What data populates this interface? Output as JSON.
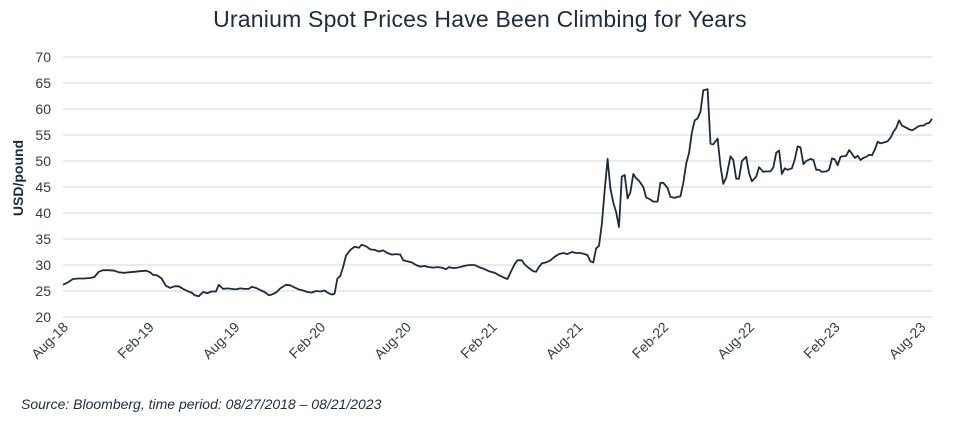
{
  "chart_data": {
    "type": "line",
    "title": "Uranium Spot Prices Have Been Climbing for Years",
    "ylabel": "USD/pound",
    "xlabel": "",
    "source": "Source: Bloomberg, time period: 08/27/2018 – 08/21/2023",
    "ylim": [
      20,
      70
    ],
    "yticks": [
      20,
      25,
      30,
      35,
      40,
      45,
      50,
      55,
      60,
      65,
      70
    ],
    "grid": "horizontal",
    "legend": "none",
    "line_color": "#1c2b3d",
    "x_ticks": [
      {
        "label": "Aug-18",
        "x": 0
      },
      {
        "label": "Feb-19",
        "x": 6
      },
      {
        "label": "Aug-19",
        "x": 12
      },
      {
        "label": "Feb-20",
        "x": 18
      },
      {
        "label": "Aug-20",
        "x": 24
      },
      {
        "label": "Feb-21",
        "x": 30
      },
      {
        "label": "Aug-21",
        "x": 36
      },
      {
        "label": "Feb-22",
        "x": 42
      },
      {
        "label": "Aug-22",
        "x": 48
      },
      {
        "label": "Feb-23",
        "x": 54
      },
      {
        "label": "Aug-23",
        "x": 60
      }
    ],
    "x_unit": "months since Aug-18",
    "series": [
      {
        "name": "",
        "points": [
          [
            0,
            26.2
          ],
          [
            0.3,
            26.6
          ],
          [
            0.7,
            27.3
          ],
          [
            1.1,
            27.4
          ],
          [
            1.5,
            27.4
          ],
          [
            1.9,
            27.5
          ],
          [
            2.2,
            27.7
          ],
          [
            2.5,
            28.7
          ],
          [
            2.8,
            29.0
          ],
          [
            3.2,
            29.0
          ],
          [
            3.6,
            28.9
          ],
          [
            3.9,
            28.6
          ],
          [
            4.3,
            28.5
          ],
          [
            4.6,
            28.6
          ],
          [
            5.0,
            28.7
          ],
          [
            5.4,
            28.8
          ],
          [
            5.8,
            28.9
          ],
          [
            6.1,
            28.6
          ],
          [
            6.3,
            28.1
          ],
          [
            6.6,
            28.0
          ],
          [
            6.9,
            27.4
          ],
          [
            7.2,
            26.0
          ],
          [
            7.5,
            25.6
          ],
          [
            7.8,
            25.9
          ],
          [
            8.1,
            25.9
          ],
          [
            8.4,
            25.4
          ],
          [
            8.7,
            25.0
          ],
          [
            9.0,
            24.7
          ],
          [
            9.2,
            24.2
          ],
          [
            9.5,
            24.0
          ],
          [
            9.8,
            24.8
          ],
          [
            10.1,
            24.6
          ],
          [
            10.4,
            24.9
          ],
          [
            10.7,
            24.9
          ],
          [
            10.9,
            26.2
          ],
          [
            11.2,
            25.4
          ],
          [
            11.5,
            25.5
          ],
          [
            11.8,
            25.4
          ],
          [
            12.1,
            25.3
          ],
          [
            12.4,
            25.5
          ],
          [
            12.7,
            25.4
          ],
          [
            13.0,
            25.4
          ],
          [
            13.2,
            25.8
          ],
          [
            13.5,
            25.6
          ],
          [
            13.8,
            25.2
          ],
          [
            14.1,
            24.8
          ],
          [
            14.4,
            24.2
          ],
          [
            14.6,
            24.3
          ],
          [
            14.9,
            24.7
          ],
          [
            15.2,
            25.5
          ],
          [
            15.6,
            26.2
          ],
          [
            15.9,
            26.1
          ],
          [
            16.2,
            25.7
          ],
          [
            16.5,
            25.3
          ],
          [
            16.8,
            25.1
          ],
          [
            17.1,
            24.8
          ],
          [
            17.4,
            24.7
          ],
          [
            17.7,
            25.0
          ],
          [
            18.0,
            24.9
          ],
          [
            18.3,
            25.1
          ],
          [
            18.5,
            24.7
          ],
          [
            18.8,
            24.3
          ],
          [
            19.0,
            24.5
          ],
          [
            19.2,
            27.4
          ],
          [
            19.4,
            27.9
          ],
          [
            19.6,
            29.6
          ],
          [
            19.8,
            31.8
          ],
          [
            20.1,
            32.9
          ],
          [
            20.4,
            33.5
          ],
          [
            20.7,
            33.3
          ],
          [
            20.9,
            33.9
          ],
          [
            21.2,
            33.6
          ],
          [
            21.5,
            33.0
          ],
          [
            21.8,
            32.9
          ],
          [
            22.1,
            32.6
          ],
          [
            22.4,
            32.8
          ],
          [
            22.7,
            32.3
          ],
          [
            23.0,
            32.0
          ],
          [
            23.3,
            32.1
          ],
          [
            23.6,
            32.0
          ],
          [
            23.8,
            30.9
          ],
          [
            24.1,
            30.7
          ],
          [
            24.4,
            30.5
          ],
          [
            24.7,
            30.0
          ],
          [
            25.0,
            29.7
          ],
          [
            25.3,
            29.8
          ],
          [
            25.6,
            29.6
          ],
          [
            25.9,
            29.5
          ],
          [
            26.2,
            29.6
          ],
          [
            26.5,
            29.5
          ],
          [
            26.8,
            29.2
          ],
          [
            27.0,
            29.6
          ],
          [
            27.3,
            29.4
          ],
          [
            27.6,
            29.5
          ],
          [
            27.9,
            29.7
          ],
          [
            28.2,
            29.9
          ],
          [
            28.5,
            30.0
          ],
          [
            28.8,
            30.0
          ],
          [
            29.1,
            29.6
          ],
          [
            29.4,
            29.3
          ],
          [
            29.8,
            28.8
          ],
          [
            30.2,
            28.5
          ],
          [
            30.6,
            27.9
          ],
          [
            30.9,
            27.5
          ],
          [
            31.1,
            27.3
          ],
          [
            31.3,
            28.5
          ],
          [
            31.6,
            30.2
          ],
          [
            31.8,
            30.9
          ],
          [
            32.1,
            30.9
          ],
          [
            32.3,
            30.1
          ],
          [
            32.6,
            29.4
          ],
          [
            32.9,
            28.8
          ],
          [
            33.1,
            28.7
          ],
          [
            33.3,
            29.6
          ],
          [
            33.5,
            30.3
          ],
          [
            33.8,
            30.5
          ],
          [
            34.1,
            30.9
          ],
          [
            34.4,
            31.6
          ],
          [
            34.7,
            32.1
          ],
          [
            35.0,
            32.3
          ],
          [
            35.3,
            32.1
          ],
          [
            35.6,
            32.5
          ],
          [
            35.9,
            32.3
          ],
          [
            36.2,
            32.3
          ],
          [
            36.5,
            32.1
          ],
          [
            36.7,
            31.9
          ],
          [
            36.9,
            30.7
          ],
          [
            37.1,
            30.5
          ],
          [
            37.3,
            33.2
          ],
          [
            37.5,
            33.7
          ],
          [
            37.7,
            37.8
          ],
          [
            37.9,
            44.4
          ],
          [
            38.1,
            50.4
          ],
          [
            38.3,
            44.7
          ],
          [
            38.5,
            42.0
          ],
          [
            38.7,
            40.2
          ],
          [
            38.9,
            37.3
          ],
          [
            39.1,
            47.0
          ],
          [
            39.3,
            47.3
          ],
          [
            39.5,
            42.8
          ],
          [
            39.7,
            44.0
          ],
          [
            39.9,
            47.5
          ],
          [
            40.1,
            46.7
          ],
          [
            40.3,
            46.2
          ],
          [
            40.6,
            45.0
          ],
          [
            40.8,
            43.0
          ],
          [
            41.1,
            42.6
          ],
          [
            41.3,
            42.2
          ],
          [
            41.6,
            42.2
          ],
          [
            41.8,
            45.8
          ],
          [
            42.0,
            45.8
          ],
          [
            42.3,
            44.8
          ],
          [
            42.5,
            43.1
          ],
          [
            42.8,
            42.9
          ],
          [
            43.0,
            43.1
          ],
          [
            43.2,
            43.2
          ],
          [
            43.4,
            45.8
          ],
          [
            43.6,
            49.5
          ],
          [
            43.8,
            51.5
          ],
          [
            44.0,
            55.5
          ],
          [
            44.2,
            57.8
          ],
          [
            44.4,
            58.2
          ],
          [
            44.6,
            59.5
          ],
          [
            44.8,
            63.6
          ],
          [
            45.1,
            63.8
          ],
          [
            45.3,
            53.3
          ],
          [
            45.5,
            53.2
          ],
          [
            45.8,
            54.3
          ],
          [
            46.0,
            49.0
          ],
          [
            46.2,
            45.6
          ],
          [
            46.4,
            46.8
          ],
          [
            46.7,
            50.9
          ],
          [
            46.9,
            50.2
          ],
          [
            47.1,
            46.6
          ],
          [
            47.3,
            46.6
          ],
          [
            47.5,
            50.0
          ],
          [
            47.8,
            50.8
          ],
          [
            48.0,
            47.6
          ],
          [
            48.2,
            46.1
          ],
          [
            48.5,
            47.0
          ],
          [
            48.7,
            48.8
          ],
          [
            49.0,
            47.9
          ],
          [
            49.2,
            48.0
          ],
          [
            49.5,
            48.0
          ],
          [
            49.7,
            48.8
          ],
          [
            49.9,
            51.6
          ],
          [
            50.1,
            52.0
          ],
          [
            50.3,
            47.5
          ],
          [
            50.5,
            48.6
          ],
          [
            50.7,
            48.3
          ],
          [
            51.0,
            48.6
          ],
          [
            51.2,
            50.3
          ],
          [
            51.4,
            52.8
          ],
          [
            51.6,
            52.6
          ],
          [
            51.8,
            49.4
          ],
          [
            52.0,
            50.0
          ],
          [
            52.3,
            50.4
          ],
          [
            52.5,
            50.2
          ],
          [
            52.7,
            48.3
          ],
          [
            52.9,
            48.3
          ],
          [
            53.1,
            47.9
          ],
          [
            53.4,
            48.0
          ],
          [
            53.6,
            48.3
          ],
          [
            53.8,
            50.5
          ],
          [
            54.0,
            50.3
          ],
          [
            54.2,
            49.2
          ],
          [
            54.4,
            50.8
          ],
          [
            54.6,
            50.9
          ],
          [
            54.8,
            51.0
          ],
          [
            55.0,
            52.1
          ],
          [
            55.2,
            51.4
          ],
          [
            55.4,
            50.6
          ],
          [
            55.6,
            51.0
          ],
          [
            55.8,
            50.2
          ],
          [
            56.0,
            50.6
          ],
          [
            56.2,
            50.8
          ],
          [
            56.4,
            51.2
          ],
          [
            56.6,
            51.1
          ],
          [
            56.8,
            52.2
          ],
          [
            57.0,
            53.7
          ],
          [
            57.2,
            53.4
          ],
          [
            57.5,
            53.6
          ],
          [
            57.7,
            53.8
          ],
          [
            57.9,
            54.5
          ],
          [
            58.1,
            55.6
          ],
          [
            58.3,
            56.4
          ],
          [
            58.5,
            57.8
          ],
          [
            58.7,
            56.8
          ],
          [
            59.0,
            56.4
          ],
          [
            59.2,
            56.1
          ],
          [
            59.4,
            55.9
          ],
          [
            59.6,
            56.2
          ],
          [
            59.8,
            56.6
          ],
          [
            60.0,
            56.8
          ],
          [
            60.2,
            56.8
          ],
          [
            60.4,
            57.2
          ],
          [
            60.6,
            57.3
          ],
          [
            60.8,
            58.1
          ]
        ]
      }
    ]
  }
}
